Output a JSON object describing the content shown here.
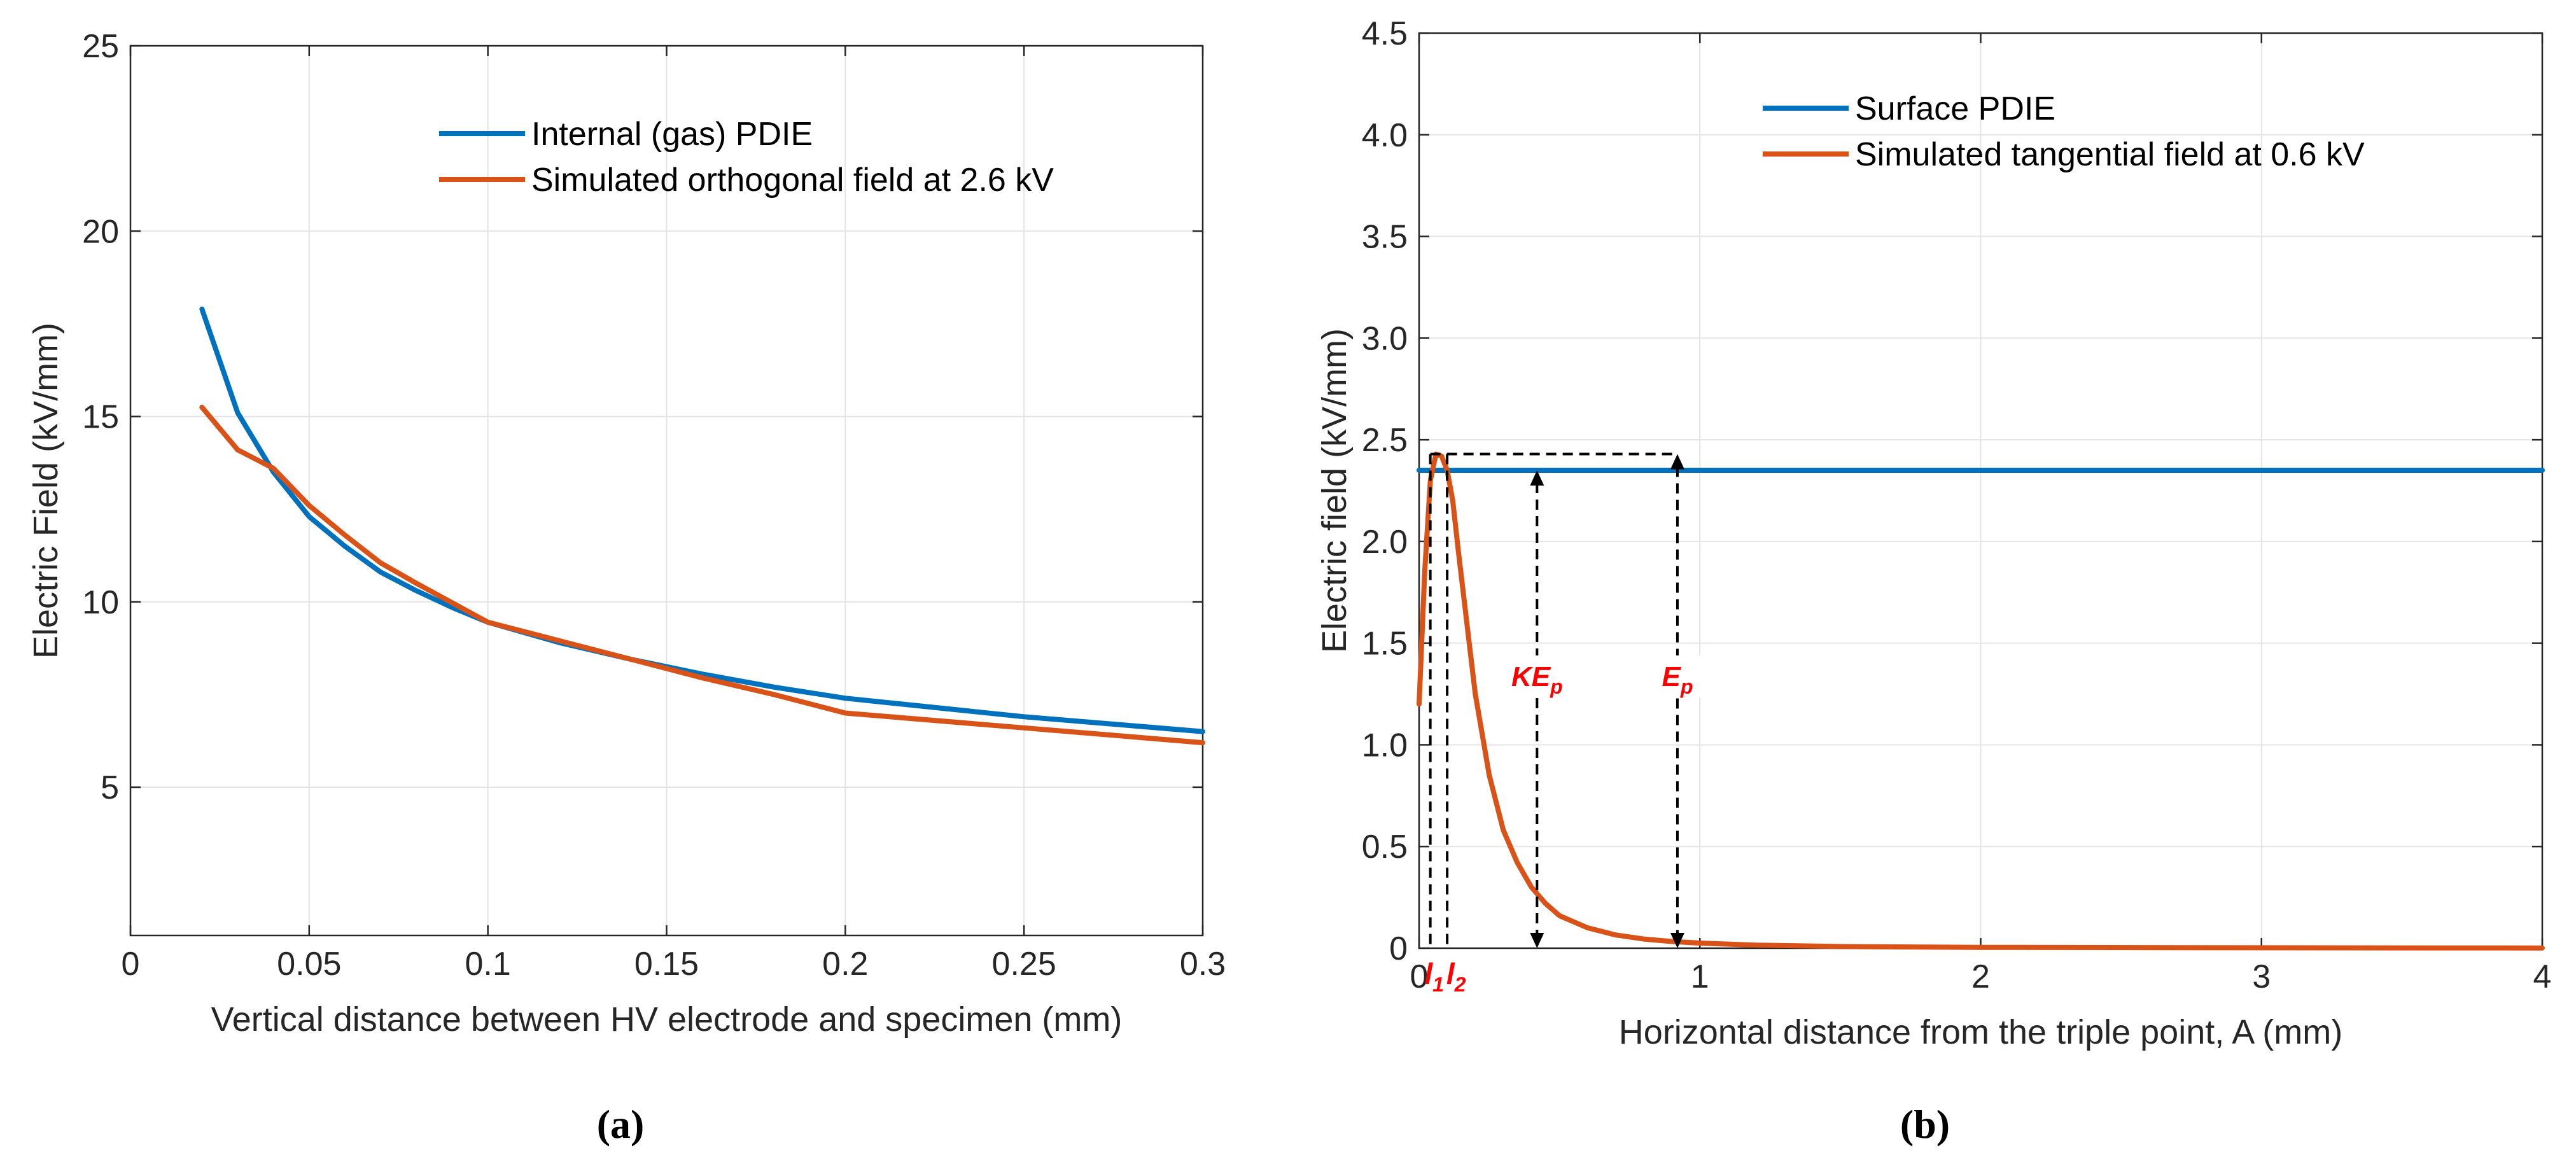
{
  "chart_data": [
    {
      "panel_label": "a",
      "type": "line",
      "xlabel": "Vertical distance between HV electrode and specimen (mm)",
      "ylabel": "Electric Field (kV/mm)",
      "xlim": [
        0,
        0.3
      ],
      "ylim": [
        1,
        25
      ],
      "xticks": [
        0,
        0.05,
        0.1,
        0.15,
        0.2,
        0.25,
        0.3
      ],
      "xtick_labels": [
        "0",
        "0.05",
        "0.1",
        "0.15",
        "0.2",
        "0.25",
        "0.3"
      ],
      "yticks": [
        5,
        10,
        15,
        20,
        25
      ],
      "ytick_labels": [
        "5",
        "10",
        "15",
        "20",
        "25"
      ],
      "grid": true,
      "legend_position": "top-center",
      "series": [
        {
          "name": "Internal (gas) PDIE",
          "color": "#0072BD",
          "x": [
            0.02,
            0.03,
            0.04,
            0.05,
            0.06,
            0.07,
            0.08,
            0.09,
            0.1,
            0.12,
            0.14,
            0.16,
            0.18,
            0.2,
            0.25,
            0.3
          ],
          "y": [
            17.9,
            15.1,
            13.5,
            12.3,
            11.5,
            10.8,
            10.3,
            9.85,
            9.45,
            8.9,
            8.45,
            8.05,
            7.7,
            7.4,
            6.9,
            6.5
          ]
        },
        {
          "name": "Simulated orthogonal field at 2.6 kV",
          "color": "#D95319",
          "x": [
            0.02,
            0.03,
            0.04,
            0.05,
            0.06,
            0.07,
            0.08,
            0.1,
            0.12,
            0.14,
            0.16,
            0.18,
            0.2,
            0.25,
            0.3
          ],
          "y": [
            15.25,
            14.1,
            13.6,
            12.6,
            11.8,
            11.05,
            10.5,
            9.45,
            8.95,
            8.45,
            7.95,
            7.5,
            7.0,
            6.6,
            6.2
          ]
        }
      ]
    },
    {
      "panel_label": "b",
      "type": "line",
      "xlabel": "Horizontal distance from the triple point, A (mm)",
      "ylabel": "Electric field (kV/mm)",
      "xlim": [
        0,
        4
      ],
      "ylim": [
        0,
        4.5
      ],
      "xticks": [
        0,
        1,
        2,
        3,
        4
      ],
      "xtick_labels": [
        "0",
        "1",
        "2",
        "3",
        "4"
      ],
      "yticks": [
        0,
        0.5,
        1.0,
        1.5,
        2.0,
        2.5,
        3.0,
        3.5,
        4.0,
        4.5
      ],
      "ytick_labels": [
        "0",
        "0.5",
        "1.0",
        "1.5",
        "2.0",
        "2.5",
        "3.0",
        "3.5",
        "4.0",
        "4.5"
      ],
      "grid": true,
      "legend_position": "top-center",
      "series": [
        {
          "name": "Surface PDIE",
          "color": "#0072BD",
          "x": [
            0,
            4
          ],
          "y": [
            2.35,
            2.35
          ]
        },
        {
          "name": "Simulated tangential field at 0.6 kV",
          "color": "#D95319",
          "x": [
            0.0,
            0.02,
            0.04,
            0.06,
            0.08,
            0.1,
            0.12,
            0.14,
            0.17,
            0.2,
            0.25,
            0.3,
            0.35,
            0.4,
            0.45,
            0.5,
            0.6,
            0.7,
            0.8,
            0.9,
            1.0,
            1.2,
            1.5,
            2.0,
            3.0,
            4.0
          ],
          "y": [
            1.2,
            1.85,
            2.3,
            2.43,
            2.42,
            2.35,
            2.2,
            1.95,
            1.6,
            1.25,
            0.85,
            0.58,
            0.42,
            0.3,
            0.22,
            0.16,
            0.1,
            0.065,
            0.045,
            0.033,
            0.025,
            0.015,
            0.008,
            0.004,
            0.002,
            0.001
          ]
        }
      ],
      "annotations": {
        "peak_value": 2.43,
        "l1_x": 0.04,
        "l2_x": 0.1,
        "kep_x": 0.42,
        "ep_x": 0.92,
        "labels": {
          "kep_main": "KE",
          "kep_sub": "p",
          "ep_main": "E",
          "ep_sub": "p",
          "l1_main": "l",
          "l1_sub": "1",
          "l2_main": "l",
          "l2_sub": "2"
        },
        "label_color": "#FF0000"
      }
    }
  ],
  "captions": {
    "a": "(a)",
    "b": "(b)"
  }
}
